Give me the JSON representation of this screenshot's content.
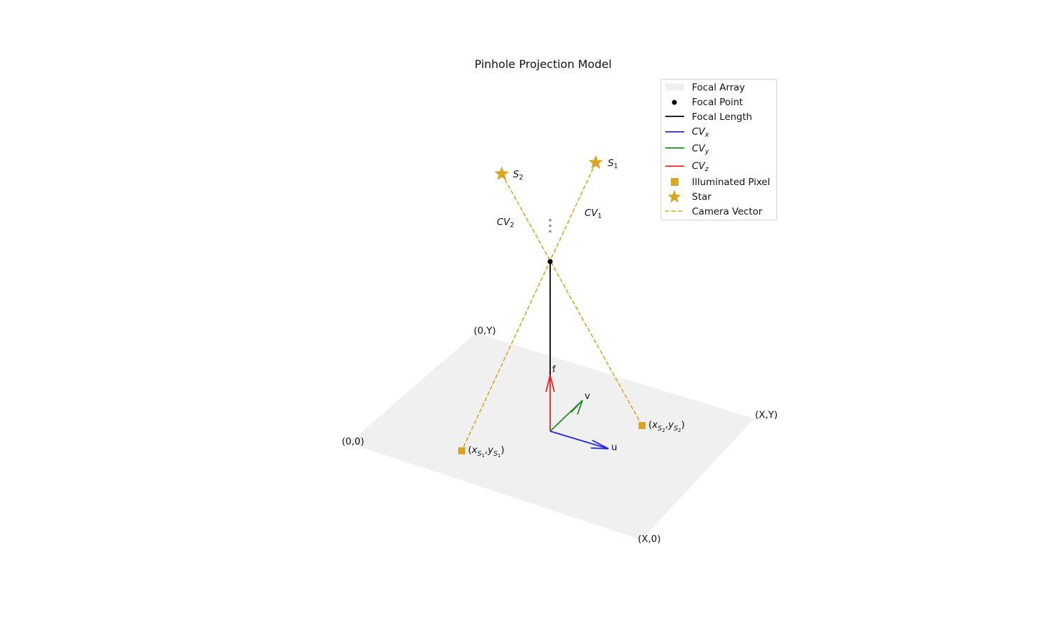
{
  "title": "Pinhole Projection Model",
  "colors": {
    "array": "#f0f0f0",
    "camera_vector": "#DAA520",
    "star": "#DAA520",
    "pixel": "#DAA520",
    "cv_x": "#2222ee",
    "cv_y": "#228b22",
    "cv_z": "#ee2222",
    "focal_length": "#000000",
    "focal_point": "#000000",
    "ellipsis": "#888888"
  },
  "corners": {
    "origin": "(0,0)",
    "top_left": "(0,Y)",
    "top_right": "(X,Y)",
    "bottom_right": "(X,0)"
  },
  "axes": {
    "u": "u",
    "v": "v",
    "f": "f"
  },
  "stars": [
    {
      "id": "s1",
      "base": "S",
      "sub": "1"
    },
    {
      "id": "s2",
      "base": "S",
      "sub": "2"
    }
  ],
  "vectors": [
    {
      "id": "cv1",
      "base": "CV",
      "sub": "1"
    },
    {
      "id": "cv2",
      "base": "CV",
      "sub": "2"
    }
  ],
  "pixels": [
    {
      "id": "p1",
      "x_base": "x",
      "x_sub": "S",
      "x_subsub": "1",
      "y_base": "y",
      "y_sub": "S",
      "y_subsub": "1"
    },
    {
      "id": "p2",
      "x_base": "x",
      "x_sub": "S",
      "x_subsub": "2",
      "y_base": "y",
      "y_sub": "S",
      "y_subsub": "2"
    }
  ],
  "legend": {
    "items": [
      {
        "id": "focal-array",
        "label": "Focal Array",
        "sym": "patch",
        "color": "#f0f0f0"
      },
      {
        "id": "focal-point",
        "label": "Focal Point",
        "sym": "dot",
        "color": "#000000"
      },
      {
        "id": "focal-length",
        "label": "Focal Length",
        "sym": "line",
        "color": "#000000"
      },
      {
        "id": "cv-x",
        "base": "CV",
        "sub": "x",
        "sym": "line",
        "color": "#2222ee"
      },
      {
        "id": "cv-y",
        "base": "CV",
        "sub": "y",
        "sym": "line",
        "color": "#228b22"
      },
      {
        "id": "cv-z",
        "base": "CV",
        "sub": "z",
        "sym": "line",
        "color": "#ee2222"
      },
      {
        "id": "illuminated-pixel",
        "label": "Illuminated Pixel",
        "sym": "square",
        "color": "#DAA520"
      },
      {
        "id": "star",
        "label": "Star",
        "sym": "star",
        "color": "#DAA520"
      },
      {
        "id": "camera-vector",
        "label": "Camera Vector",
        "sym": "dash",
        "color": "#DAA520"
      }
    ]
  }
}
